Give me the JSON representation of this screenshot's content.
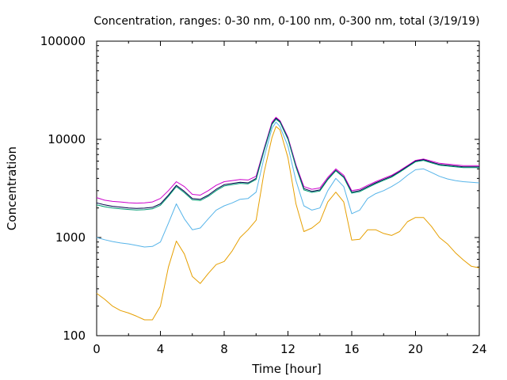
{
  "chart_data": {
    "type": "line",
    "title": "Concentration, ranges: 0-30 nm, 0-100 nm, 0-300 nm, total (3/19/19)",
    "xlabel": "Time [hour]",
    "ylabel": "Concentration",
    "xlim": [
      0,
      24
    ],
    "ylim": [
      100,
      100000
    ],
    "yscale": "log",
    "grid": false,
    "legend": "none",
    "x_ticks": [
      "0",
      "4",
      "8",
      "12",
      "16",
      "20",
      "24"
    ],
    "x_tick_values": [
      0,
      4,
      8,
      12,
      16,
      20,
      24
    ],
    "y_ticks": [
      "100",
      "1000",
      "10000",
      "100000"
    ],
    "y_tick_values": [
      100,
      1000,
      10000,
      100000
    ],
    "x": [
      0,
      0.5,
      1,
      1.5,
      2,
      2.5,
      3,
      3.5,
      4,
      4.5,
      5,
      5.5,
      6,
      6.5,
      7,
      7.5,
      8,
      8.5,
      9,
      9.5,
      10,
      10.5,
      11,
      11.25,
      11.5,
      12,
      12.5,
      13,
      13.5,
      14,
      14.5,
      15,
      15.5,
      16,
      16.5,
      17,
      17.5,
      18,
      18.5,
      19,
      19.5,
      20,
      20.5,
      21,
      21.5,
      22,
      22.5,
      23,
      23.5,
      24
    ],
    "series": [
      {
        "color": "#cc00cc",
        "values": [
          2550,
          2400,
          2330,
          2300,
          2260,
          2240,
          2250,
          2300,
          2500,
          3000,
          3700,
          3300,
          2750,
          2700,
          3000,
          3400,
          3700,
          3800,
          3900,
          3850,
          4200,
          8000,
          15000,
          16800,
          15500,
          10500,
          5500,
          3300,
          3100,
          3200,
          4100,
          5000,
          4300,
          3000,
          3100,
          3400,
          3700,
          4000,
          4300,
          4800,
          5400,
          6100,
          6300,
          6000,
          5700,
          5600,
          5500,
          5400,
          5400,
          5400
        ]
      },
      {
        "color": "#00004a",
        "values": [
          2250,
          2150,
          2080,
          2040,
          2000,
          1980,
          1990,
          2030,
          2200,
          2700,
          3400,
          2950,
          2500,
          2450,
          2700,
          3100,
          3450,
          3550,
          3650,
          3600,
          4000,
          7800,
          14500,
          16400,
          15200,
          10200,
          5300,
          3150,
          2950,
          3050,
          3950,
          4850,
          4150,
          2900,
          3000,
          3300,
          3600,
          3900,
          4200,
          4700,
          5300,
          6000,
          6200,
          5850,
          5550,
          5450,
          5350,
          5250,
          5250,
          5250
        ]
      },
      {
        "color": "#009e73",
        "values": [
          2150,
          2060,
          2000,
          1960,
          1930,
          1910,
          1920,
          1960,
          2130,
          2620,
          3300,
          2860,
          2420,
          2380,
          2620,
          3000,
          3350,
          3460,
          3560,
          3520,
          3900,
          7600,
          14200,
          16000,
          14900,
          10000,
          5200,
          3050,
          2880,
          2980,
          3880,
          4780,
          4080,
          2830,
          2930,
          3220,
          3520,
          3820,
          4120,
          4620,
          5220,
          5900,
          6100,
          5750,
          5450,
          5350,
          5250,
          5150,
          5150,
          5150
        ]
      },
      {
        "color": "#56b4e9",
        "values": [
          1000,
          950,
          910,
          880,
          860,
          830,
          800,
          810,
          900,
          1400,
          2200,
          1550,
          1200,
          1250,
          1550,
          1900,
          2100,
          2250,
          2450,
          2500,
          2900,
          6500,
          13000,
          15000,
          13500,
          8500,
          3800,
          2100,
          1900,
          2000,
          3000,
          4000,
          3300,
          1750,
          1900,
          2500,
          2800,
          3000,
          3300,
          3700,
          4300,
          4900,
          5000,
          4600,
          4200,
          3950,
          3800,
          3700,
          3650,
          3600
        ]
      },
      {
        "color": "#e69f00",
        "values": [
          270,
          235,
          200,
          180,
          170,
          158,
          145,
          145,
          200,
          500,
          920,
          680,
          400,
          340,
          430,
          530,
          570,
          730,
          1000,
          1200,
          1500,
          4600,
          10500,
          13500,
          12500,
          6500,
          2200,
          1150,
          1250,
          1450,
          2300,
          2900,
          2300,
          940,
          960,
          1200,
          1200,
          1100,
          1050,
          1150,
          1450,
          1600,
          1600,
          1300,
          1000,
          860,
          700,
          590,
          510,
          490
        ]
      }
    ]
  }
}
